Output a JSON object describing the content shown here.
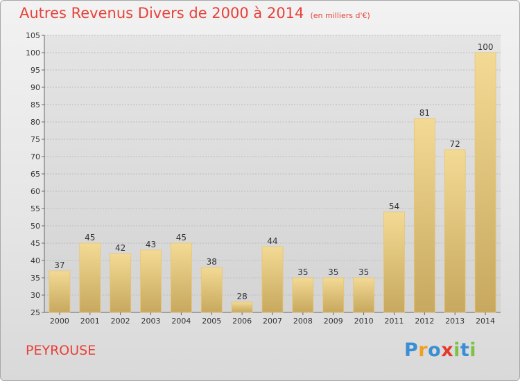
{
  "title": "Autres Revenus Divers de 2000 à 2014",
  "subtitle": "(en milliers d'€)",
  "commune": "PEYROUSE",
  "logo": {
    "text": "Proxiti",
    "letters": [
      "P",
      "r",
      "o",
      "x",
      "i",
      "t",
      "i"
    ],
    "colors": [
      "#3a8fd4",
      "#f0a020",
      "#3a8fd4",
      "#e23b2e",
      "#7cc243",
      "#3a8fd4",
      "#7cc243"
    ]
  },
  "colors": {
    "title": "#e8413a",
    "bar_light": "#f3da94",
    "bar_dark": "#c7a85e"
  },
  "chart_data": {
    "type": "bar",
    "title": "Autres Revenus Divers de 2000 à 2014",
    "subtitle": "(en milliers d'€)",
    "categories": [
      "2000",
      "2001",
      "2002",
      "2003",
      "2004",
      "2005",
      "2006",
      "2007",
      "2008",
      "2009",
      "2010",
      "2011",
      "2012",
      "2013",
      "2014"
    ],
    "values": [
      37,
      45,
      42,
      43,
      45,
      38,
      28,
      44,
      35,
      35,
      35,
      54,
      81,
      72,
      100
    ],
    "ylim": [
      25,
      105
    ],
    "yticks": [
      25,
      30,
      35,
      40,
      45,
      50,
      55,
      60,
      65,
      70,
      75,
      80,
      85,
      90,
      95,
      100,
      105
    ],
    "grid": true,
    "xlabel": "",
    "ylabel": ""
  }
}
